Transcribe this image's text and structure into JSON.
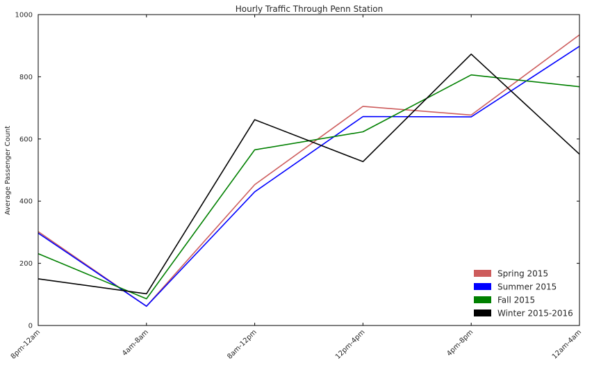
{
  "chart_data": {
    "type": "line",
    "title": "Hourly Traffic Through Penn Station",
    "xlabel": "",
    "ylabel": "Average Passenger Count",
    "categories": [
      "8pm-12am",
      "4am-8am",
      "8am-12pm",
      "12pm-4pm",
      "4pm-8pm",
      "12am-4am"
    ],
    "ylim": [
      0,
      1000
    ],
    "yticks": [
      "0",
      "200",
      "400",
      "600",
      "800",
      "1000"
    ],
    "grid": false,
    "legend_position": "lower-right",
    "series": [
      {
        "name": "Spring 2015",
        "color": "#cd5c5c",
        "values": [
          302,
          62,
          453,
          705,
          677,
          935
        ]
      },
      {
        "name": "Summer 2015",
        "color": "#0000ff",
        "values": [
          297,
          62,
          430,
          672,
          671,
          898
        ]
      },
      {
        "name": "Fall 2015",
        "color": "#008000",
        "values": [
          231,
          86,
          565,
          623,
          806,
          768
        ]
      },
      {
        "name": "Winter 2015-2016",
        "color": "#000000",
        "values": [
          150,
          102,
          662,
          527,
          873,
          551
        ]
      }
    ]
  }
}
